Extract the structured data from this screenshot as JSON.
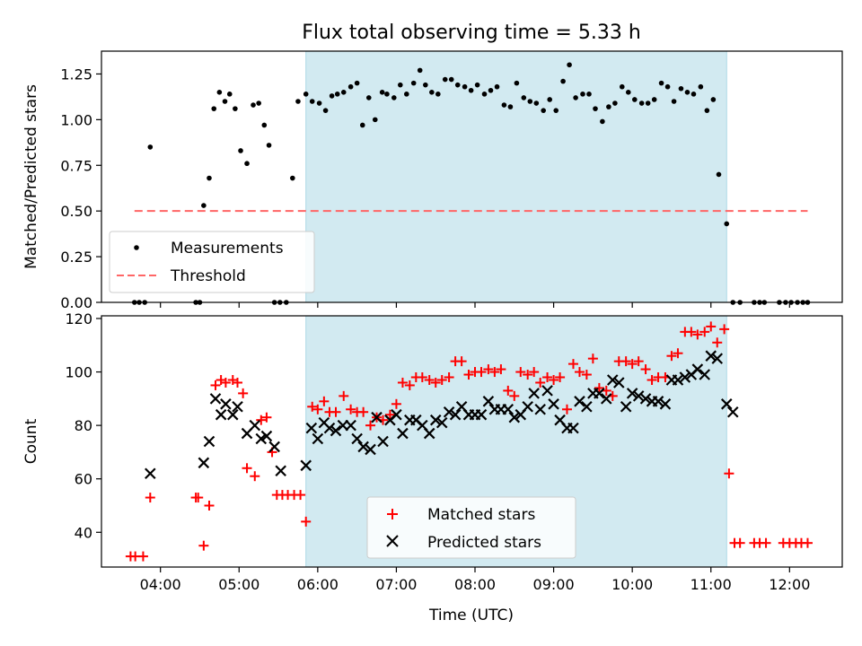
{
  "title": "Flux total observing time = 5.33 h",
  "x_label": "Time (UTC)",
  "x_ticks": [
    "04:00",
    "05:00",
    "06:00",
    "07:00",
    "08:00",
    "09:00",
    "10:00",
    "11:00",
    "12:00"
  ],
  "colors": {
    "shade": "#add8e6",
    "measure": "#000000",
    "threshold": "#ff6666",
    "matched": "#ff0000",
    "predicted": "#000000"
  },
  "chart_data": [
    {
      "type": "scatter",
      "ylabel": "Matched/Predicted stars",
      "xlim": [
        3.25,
        12.67
      ],
      "ylim": [
        0,
        1.375
      ],
      "y_ticks": [
        "0.00",
        "0.25",
        "0.50",
        "0.75",
        "1.00",
        "1.25"
      ],
      "y_tick_values": [
        0,
        0.25,
        0.5,
        0.75,
        1.0,
        1.25
      ],
      "legend": {
        "placement": "lower-left",
        "entries": [
          "Measurements",
          "Threshold"
        ]
      },
      "shaded_span": [
        5.85,
        11.2
      ],
      "threshold": {
        "name": "Threshold",
        "value": 0.5,
        "x_range": [
          3.67,
          12.23
        ]
      },
      "series": [
        {
          "name": "Measurements",
          "x": [
            3.67,
            3.73,
            3.8,
            3.87,
            4.45,
            4.5,
            4.55,
            4.62,
            4.68,
            4.75,
            4.82,
            4.88,
            4.95,
            5.02,
            5.1,
            5.18,
            5.25,
            5.32,
            5.38,
            5.45,
            5.52,
            5.6,
            5.68,
            5.75,
            5.85,
            5.93,
            6.02,
            6.1,
            6.18,
            6.25,
            6.33,
            6.42,
            6.5,
            6.57,
            6.65,
            6.73,
            6.82,
            6.88,
            6.97,
            7.05,
            7.13,
            7.22,
            7.3,
            7.37,
            7.45,
            7.53,
            7.62,
            7.7,
            7.78,
            7.87,
            7.95,
            8.03,
            8.12,
            8.2,
            8.28,
            8.37,
            8.45,
            8.53,
            8.62,
            8.7,
            8.78,
            8.87,
            8.95,
            9.03,
            9.12,
            9.2,
            9.28,
            9.37,
            9.45,
            9.53,
            9.62,
            9.7,
            9.78,
            9.87,
            9.95,
            10.03,
            10.12,
            10.2,
            10.28,
            10.37,
            10.45,
            10.53,
            10.62,
            10.7,
            10.78,
            10.87,
            10.95,
            11.03,
            11.1,
            11.2,
            11.28,
            11.37,
            11.55,
            11.62,
            11.68,
            11.87,
            11.95,
            12.02,
            12.1,
            12.17,
            12.23
          ],
          "y": [
            0,
            0,
            0,
            0.85,
            0,
            0,
            0.53,
            0.68,
            1.06,
            1.15,
            1.1,
            1.14,
            1.06,
            0.83,
            0.76,
            1.08,
            1.09,
            0.97,
            0.86,
            0,
            0,
            0,
            0.68,
            1.1,
            1.14,
            1.1,
            1.09,
            1.05,
            1.13,
            1.14,
            1.15,
            1.18,
            1.2,
            0.97,
            1.12,
            1.0,
            1.15,
            1.14,
            1.12,
            1.19,
            1.14,
            1.2,
            1.27,
            1.19,
            1.15,
            1.14,
            1.22,
            1.22,
            1.19,
            1.18,
            1.16,
            1.19,
            1.14,
            1.16,
            1.18,
            1.08,
            1.07,
            1.2,
            1.12,
            1.1,
            1.09,
            1.05,
            1.11,
            1.05,
            1.21,
            1.3,
            1.12,
            1.14,
            1.14,
            1.06,
            0.99,
            1.07,
            1.09,
            1.18,
            1.15,
            1.11,
            1.09,
            1.09,
            1.11,
            1.2,
            1.18,
            1.1,
            1.17,
            1.15,
            1.14,
            1.18,
            1.05,
            1.11,
            0.7,
            0.43,
            0,
            0,
            0,
            0,
            0,
            0,
            0,
            0,
            0,
            0,
            0
          ]
        }
      ]
    },
    {
      "type": "scatter",
      "ylabel": "Count",
      "xlim": [
        3.25,
        12.67
      ],
      "ylim": [
        27,
        121
      ],
      "y_ticks": [
        "40",
        "60",
        "80",
        "100",
        "120"
      ],
      "y_tick_values": [
        40,
        60,
        80,
        100,
        120
      ],
      "legend": {
        "placement": "lower-center",
        "entries": [
          "Matched stars",
          "Predicted stars"
        ]
      },
      "shaded_span": [
        5.85,
        11.2
      ],
      "series": [
        {
          "name": "Matched stars",
          "marker": "plus",
          "x": [
            3.62,
            3.68,
            3.78,
            3.87,
            4.45,
            4.48,
            4.55,
            4.62,
            4.7,
            4.77,
            4.83,
            4.92,
            4.98,
            5.05,
            5.1,
            5.2,
            5.28,
            5.35,
            5.42,
            5.48,
            5.55,
            5.62,
            5.7,
            5.78,
            5.85,
            5.93,
            6.0,
            6.08,
            6.15,
            6.23,
            6.33,
            6.42,
            6.5,
            6.58,
            6.67,
            6.75,
            6.83,
            6.92,
            7.0,
            7.08,
            7.17,
            7.25,
            7.33,
            7.42,
            7.5,
            7.58,
            7.67,
            7.75,
            7.83,
            7.92,
            8.0,
            8.08,
            8.17,
            8.25,
            8.33,
            8.42,
            8.5,
            8.58,
            8.67,
            8.75,
            8.83,
            8.92,
            9.0,
            9.08,
            9.17,
            9.25,
            9.33,
            9.42,
            9.5,
            9.58,
            9.67,
            9.75,
            9.83,
            9.92,
            10.0,
            10.08,
            10.17,
            10.25,
            10.33,
            10.42,
            10.5,
            10.58,
            10.67,
            10.75,
            10.83,
            10.92,
            11.0,
            11.08,
            11.17,
            11.23,
            11.3,
            11.37,
            11.55,
            11.62,
            11.7,
            11.92,
            12.0,
            12.08,
            12.15,
            12.23
          ],
          "y": [
            31,
            31,
            31,
            53,
            53,
            53,
            35,
            50,
            95,
            97,
            96,
            97,
            96,
            92,
            64,
            61,
            82,
            83,
            70,
            54,
            54,
            54,
            54,
            54,
            44,
            87,
            86,
            89,
            85,
            85,
            91,
            86,
            85,
            85,
            80,
            83,
            82,
            84,
            88,
            96,
            95,
            98,
            98,
            97,
            96,
            97,
            98,
            104,
            104,
            99,
            100,
            100,
            101,
            100,
            101,
            93,
            91,
            100,
            99,
            100,
            96,
            98,
            97,
            98,
            86,
            103,
            100,
            99,
            105,
            94,
            93,
            91,
            104,
            104,
            103,
            104,
            101,
            97,
            98,
            98,
            106,
            107,
            115,
            115,
            114,
            115,
            117,
            111,
            116,
            62,
            36,
            36,
            36,
            36,
            36,
            36,
            36,
            36,
            36,
            36
          ]
        },
        {
          "name": "Predicted stars",
          "marker": "x",
          "x": [
            3.87,
            4.55,
            4.62,
            4.7,
            4.77,
            4.83,
            4.92,
            4.98,
            5.1,
            5.2,
            5.28,
            5.35,
            5.45,
            5.53,
            5.85,
            5.92,
            6.0,
            6.08,
            6.15,
            6.23,
            6.32,
            6.42,
            6.5,
            6.58,
            6.67,
            6.75,
            6.83,
            6.92,
            7.0,
            7.08,
            7.17,
            7.25,
            7.33,
            7.42,
            7.5,
            7.58,
            7.67,
            7.75,
            7.83,
            7.92,
            8.0,
            8.08,
            8.17,
            8.25,
            8.33,
            8.42,
            8.5,
            8.58,
            8.67,
            8.75,
            8.83,
            8.92,
            9.0,
            9.08,
            9.17,
            9.25,
            9.33,
            9.42,
            9.5,
            9.58,
            9.67,
            9.75,
            9.83,
            9.92,
            10.0,
            10.08,
            10.17,
            10.25,
            10.33,
            10.42,
            10.5,
            10.58,
            10.67,
            10.75,
            10.83,
            10.92,
            11.0,
            11.08,
            11.2,
            11.28
          ],
          "y": [
            62,
            66,
            74,
            90,
            84,
            88,
            84,
            87,
            77,
            80,
            75,
            76,
            72,
            63,
            65,
            79,
            75,
            81,
            79,
            78,
            80,
            80,
            75,
            72,
            71,
            83,
            74,
            82,
            84,
            77,
            82,
            82,
            80,
            77,
            82,
            81,
            85,
            84,
            87,
            84,
            84,
            84,
            89,
            86,
            86,
            86,
            83,
            84,
            87,
            92,
            86,
            93,
            88,
            82,
            79,
            79,
            89,
            87,
            92,
            92,
            90,
            97,
            96,
            87,
            92,
            91,
            90,
            89,
            89,
            88,
            97,
            97,
            98,
            99,
            101,
            99,
            106,
            105,
            88,
            85
          ]
        }
      ]
    }
  ]
}
